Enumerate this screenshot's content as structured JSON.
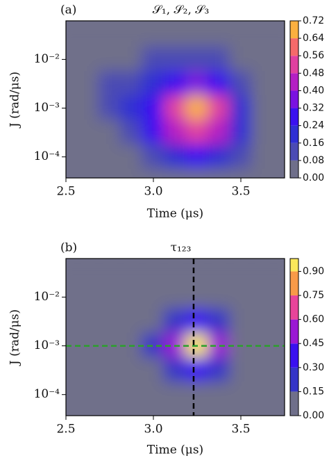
{
  "chart_data": [
    {
      "type": "contour",
      "panel_label": "(a)",
      "title": "𝒮₁, 𝒮₂, 𝒮₃",
      "xlabel": "Time (μs)",
      "ylabel": "J (rad/μs)",
      "x": [
        2.5,
        2.625,
        2.75,
        2.875,
        3.0,
        3.125,
        3.25,
        3.375,
        3.5,
        3.625,
        3.75
      ],
      "y": [
        0.0316,
        0.01,
        0.00316,
        0.001,
        0.000316,
        0.0001,
        3.16e-05
      ],
      "z": [
        [
          0,
          0,
          0,
          0,
          0,
          0,
          0,
          0,
          0,
          0,
          0
        ],
        [
          0,
          0,
          0,
          0.02,
          0.08,
          0.12,
          0.14,
          0.12,
          0.06,
          0,
          0
        ],
        [
          0,
          0.05,
          0.08,
          0.12,
          0.2,
          0.3,
          0.35,
          0.3,
          0.15,
          0.03,
          0
        ],
        [
          0,
          0.06,
          0.1,
          0.16,
          0.3,
          0.52,
          0.72,
          0.5,
          0.22,
          0.05,
          0
        ],
        [
          0,
          0.02,
          0.06,
          0.12,
          0.24,
          0.42,
          0.55,
          0.4,
          0.18,
          0.04,
          0
        ],
        [
          0,
          0,
          0.02,
          0.06,
          0.12,
          0.2,
          0.24,
          0.18,
          0.08,
          0.02,
          0
        ],
        [
          0,
          0,
          0,
          0,
          0.02,
          0.04,
          0.05,
          0.03,
          0,
          0,
          0
        ]
      ],
      "xlim": [
        2.5,
        3.75
      ],
      "ylim": [
        3.7e-05,
        0.0617
      ],
      "log_y": true,
      "xticks": [
        2.5,
        {
          "value": 3,
          "label": "3.0"
        },
        3.5
      ],
      "yticks": [
        {
          "value": 0.0001,
          "label": "10⁻⁴"
        },
        {
          "value": 0.001,
          "label": "10⁻³"
        },
        {
          "value": 0.01,
          "label": "10⁻²"
        }
      ],
      "colorbar": {
        "lim": [
          0,
          0.72
        ],
        "ticks": [
          {
            "value": 0,
            "label": "0.00"
          },
          0.08,
          0.16,
          0.24,
          0.32,
          {
            "value": 0.4,
            "label": "0.40"
          },
          0.48,
          0.56,
          0.64,
          0.72
        ],
        "colors": [
          "#6f6f8a",
          "#4b4bb4",
          "#2f2fd4",
          "#3a10f0",
          "#7a12e0",
          "#b41fc4",
          "#e040a0",
          "#f56a6a",
          "#fbb040"
        ]
      },
      "lines": []
    },
    {
      "type": "contour",
      "panel_label": "(b)",
      "title": "τ₁₂₃",
      "xlabel": "Time (μs)",
      "ylabel": "J (rad/μs)",
      "x": [
        2.5,
        2.625,
        2.75,
        2.875,
        3.0,
        3.125,
        3.25,
        3.375,
        3.5,
        3.625,
        3.75
      ],
      "y": [
        0.0316,
        0.01,
        0.00316,
        0.001,
        0.000316,
        0.0001,
        3.16e-05
      ],
      "z": [
        [
          0,
          0,
          0,
          0,
          0,
          0,
          0,
          0,
          0,
          0,
          0
        ],
        [
          0,
          0,
          0,
          0,
          0,
          0.03,
          0.04,
          0.02,
          0,
          0,
          0
        ],
        [
          0,
          0,
          0,
          0,
          0.05,
          0.2,
          0.3,
          0.2,
          0.05,
          0,
          0
        ],
        [
          0,
          0,
          0,
          0.02,
          0.15,
          0.55,
          0.98,
          0.5,
          0.12,
          0,
          0
        ],
        [
          0,
          0,
          0,
          0,
          0.06,
          0.25,
          0.35,
          0.2,
          0.05,
          0,
          0
        ],
        [
          0,
          0,
          0,
          0,
          0,
          0.04,
          0.06,
          0.03,
          0,
          0,
          0
        ],
        [
          0,
          0,
          0,
          0,
          0,
          0,
          0,
          0,
          0,
          0,
          0
        ]
      ],
      "xlim": [
        2.5,
        3.75
      ],
      "ylim": [
        3.7e-05,
        0.0617
      ],
      "log_y": true,
      "xticks": [
        2.5,
        {
          "value": 3,
          "label": "3.0"
        },
        3.5
      ],
      "yticks": [
        {
          "value": 0.0001,
          "label": "10⁻⁴"
        },
        {
          "value": 0.001,
          "label": "10⁻³"
        },
        {
          "value": 0.01,
          "label": "10⁻²"
        }
      ],
      "colorbar": {
        "lim": [
          0,
          0.98
        ],
        "ticks": [
          {
            "value": 0,
            "label": "0.00"
          },
          0.15,
          {
            "value": 0.3,
            "label": "0.30"
          },
          0.45,
          {
            "value": 0.6,
            "label": "0.60"
          },
          0.75,
          {
            "value": 0.9,
            "label": "0.90"
          }
        ],
        "colors": [
          "#6f6f8a",
          "#3535c8",
          "#3a10f0",
          "#9a18d4",
          "#e8449a",
          "#f89a48",
          "#fbe85a"
        ]
      },
      "lines": [
        {
          "orientation": "vertical",
          "value": 3.23,
          "color": "#000000"
        },
        {
          "orientation": "horizontal",
          "value": 0.001,
          "color": "#2ca02c"
        }
      ]
    }
  ]
}
